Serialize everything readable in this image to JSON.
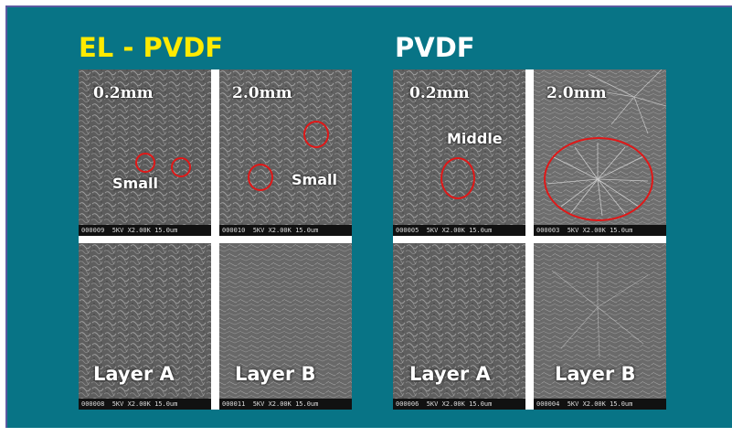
{
  "titles": {
    "el_pvdf": "EL - PVDF",
    "pvdf": "PVDF"
  },
  "colors": {
    "panel_background": "#087486",
    "el_title": "#ffea00",
    "pvdf_title": "#ffffff",
    "highlight_ring": "#e01818"
  },
  "micrographs": {
    "el_top_left": {
      "scale": "0.2mm",
      "note": "Small",
      "footer": "000009  5KV X2.00K 15.0um"
    },
    "el_top_right": {
      "scale": "2.0mm",
      "note": "Small",
      "footer": "000010  5KV X2.00K 15.0um"
    },
    "el_bot_left": {
      "layer": "Layer A",
      "footer": "000008  5KV X2.00K 15.0um"
    },
    "el_bot_right": {
      "layer": "Layer B",
      "footer": "000011  5KV X2.00K 15.0um"
    },
    "pv_top_left": {
      "scale": "0.2mm",
      "note": "Middle",
      "footer": "000005  5KV X2.00K 15.0um"
    },
    "pv_top_right": {
      "scale": "2.0mm",
      "footer": "000003  5KV X2.00K 15.0um"
    },
    "pv_bot_left": {
      "layer": "Layer A",
      "footer": "000006  5KV X2.00K 15.0um"
    },
    "pv_bot_right": {
      "layer": "Layer B",
      "footer": "000004  5KV X2.00K 15.0um"
    }
  }
}
